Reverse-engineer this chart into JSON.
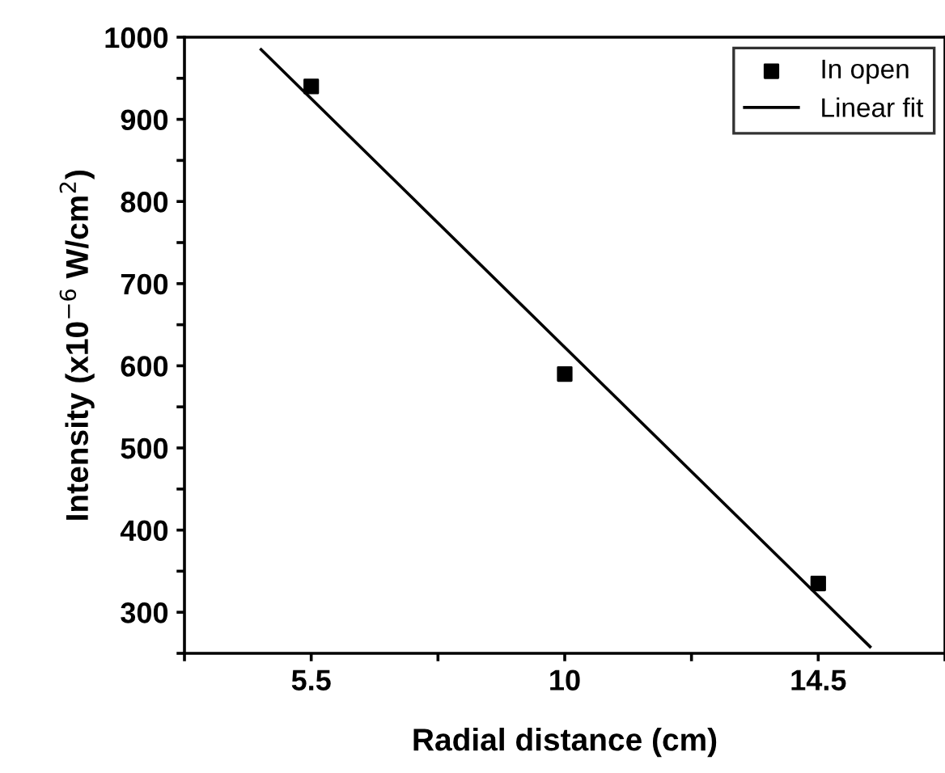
{
  "chart_data": {
    "type": "scatter",
    "xlabel": "Radial distance (cm)",
    "ylabel": "Intensity (x10$^{−6}$ W/cm$^{2}$)",
    "xlim": [
      3.25,
      16.75
    ],
    "xticks": [
      {
        "value": 3.25,
        "label": null
      },
      5.5,
      {
        "value": 7.75,
        "label": null
      },
      10,
      {
        "value": 12.25,
        "label": null
      },
      14.5,
      {
        "value": 16.75,
        "label": null
      }
    ],
    "ylim": [
      250,
      1000
    ],
    "yticks": [
      {
        "value": 250,
        "label": null
      },
      300,
      {
        "value": 350,
        "label": null
      },
      400,
      {
        "value": 450,
        "label": null
      },
      500,
      {
        "value": 550,
        "label": null
      },
      600,
      {
        "value": 650,
        "label": null
      },
      700,
      {
        "value": 750,
        "label": null
      },
      800,
      {
        "value": 850,
        "label": null
      },
      900,
      {
        "value": 950,
        "label": null
      },
      1000
    ],
    "legend": "top right",
    "grid": false,
    "series": [
      {
        "name": "In open",
        "marker": "square",
        "color": "#000000",
        "x": [
          5.5,
          10,
          14.5
        ],
        "values": [
          940,
          590,
          335
        ]
      },
      {
        "name": "Linear fit",
        "type": "line",
        "color": "#000000",
        "x": [
          4.61,
          15.42
        ],
        "values": [
          985,
          258
        ]
      }
    ]
  }
}
